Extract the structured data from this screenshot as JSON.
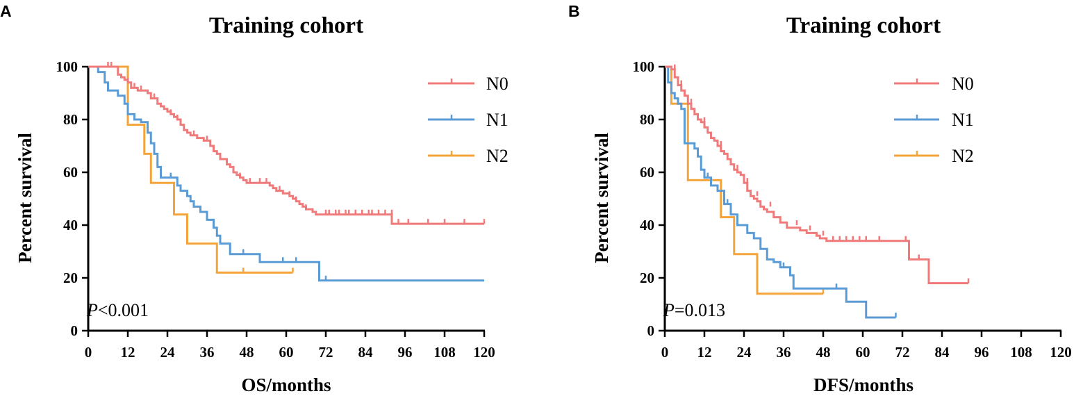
{
  "colors": {
    "N0": "#f07a7a",
    "N1": "#5b9bd5",
    "N2": "#f5a43a"
  },
  "chart_data": [
    {
      "type": "line",
      "panel_label": "A",
      "title": "Training cohort",
      "xlabel": "OS/months",
      "ylabel": "Percent survival",
      "xlim": [
        0,
        120
      ],
      "ylim": [
        0,
        100
      ],
      "x_ticks": [
        0,
        12,
        24,
        36,
        48,
        60,
        72,
        84,
        96,
        108,
        120
      ],
      "y_ticks": [
        0,
        20,
        40,
        60,
        80,
        100
      ],
      "annotation": {
        "italic": "P",
        "text": "<0.001"
      },
      "legend_position": "top-right",
      "series": [
        {
          "name": "N0",
          "steps": [
            [
              0,
              100
            ],
            [
              9,
              97
            ],
            [
              10,
              96
            ],
            [
              11,
              95
            ],
            [
              12,
              94
            ],
            [
              13,
              92
            ],
            [
              15,
              91
            ],
            [
              18,
              90
            ],
            [
              19,
              88
            ],
            [
              21,
              86
            ],
            [
              22,
              85
            ],
            [
              23,
              84
            ],
            [
              24,
              83
            ],
            [
              25,
              82
            ],
            [
              26,
              81
            ],
            [
              27,
              80
            ],
            [
              28,
              78
            ],
            [
              29,
              76
            ],
            [
              30,
              75
            ],
            [
              31,
              74
            ],
            [
              33,
              73
            ],
            [
              35,
              72
            ],
            [
              37,
              70
            ],
            [
              38,
              68
            ],
            [
              39,
              67
            ],
            [
              40,
              65
            ],
            [
              42,
              63
            ],
            [
              43,
              62
            ],
            [
              44,
              60
            ],
            [
              45,
              59
            ],
            [
              46,
              58
            ],
            [
              47,
              57
            ],
            [
              48,
              56
            ],
            [
              55,
              55
            ],
            [
              56,
              54
            ],
            [
              57,
              53
            ],
            [
              59,
              52
            ],
            [
              61,
              51
            ],
            [
              62,
              50
            ],
            [
              63,
              49
            ],
            [
              64,
              48
            ],
            [
              65,
              47
            ],
            [
              66,
              46
            ],
            [
              68,
              45
            ],
            [
              69,
              44
            ],
            [
              92,
              40.5
            ],
            [
              120,
              40.5
            ]
          ],
          "censored": [
            [
              6,
              100
            ],
            [
              7,
              100
            ],
            [
              12,
              94
            ],
            [
              14,
              92
            ],
            [
              16,
              91
            ],
            [
              20,
              88
            ],
            [
              25,
              82
            ],
            [
              27,
              80
            ],
            [
              29,
              76
            ],
            [
              32,
              74
            ],
            [
              36,
              72
            ],
            [
              40,
              65
            ],
            [
              46,
              58
            ],
            [
              49,
              56
            ],
            [
              52,
              56
            ],
            [
              54,
              56
            ],
            [
              58,
              53
            ],
            [
              61,
              51
            ],
            [
              63,
              49
            ],
            [
              66,
              46
            ],
            [
              72,
              44
            ],
            [
              73,
              44
            ],
            [
              75,
              44
            ],
            [
              76,
              44
            ],
            [
              78,
              44
            ],
            [
              79,
              44
            ],
            [
              81,
              44
            ],
            [
              83,
              44
            ],
            [
              85,
              44
            ],
            [
              86,
              44
            ],
            [
              88,
              44
            ],
            [
              90,
              44
            ],
            [
              92,
              44
            ],
            [
              94,
              40.5
            ],
            [
              97,
              40.5
            ],
            [
              103,
              40.5
            ],
            [
              108,
              40.5
            ],
            [
              114,
              40.5
            ],
            [
              120,
              40.5
            ]
          ]
        },
        {
          "name": "N1",
          "steps": [
            [
              0,
              100
            ],
            [
              3,
              98
            ],
            [
              5,
              94
            ],
            [
              6,
              91
            ],
            [
              9,
              89
            ],
            [
              11,
              86
            ],
            [
              12,
              82
            ],
            [
              14,
              80
            ],
            [
              16,
              79
            ],
            [
              18,
              75
            ],
            [
              19,
              71
            ],
            [
              20,
              67
            ],
            [
              21,
              62
            ],
            [
              22,
              58
            ],
            [
              27,
              55
            ],
            [
              28,
              53
            ],
            [
              30,
              51
            ],
            [
              31,
              49
            ],
            [
              32,
              47
            ],
            [
              34,
              45
            ],
            [
              36,
              42
            ],
            [
              38,
              39
            ],
            [
              39,
              36
            ],
            [
              40,
              33
            ],
            [
              43,
              29
            ],
            [
              52,
              26
            ],
            [
              70,
              19
            ],
            [
              120,
              19
            ]
          ],
          "censored": [
            [
              25,
              58
            ],
            [
              47,
              29
            ],
            [
              59,
              26
            ],
            [
              63,
              26
            ],
            [
              72,
              19
            ]
          ]
        },
        {
          "name": "N2",
          "steps": [
            [
              0,
              100
            ],
            [
              12,
              78
            ],
            [
              17,
              67
            ],
            [
              19,
              56
            ],
            [
              26,
              44
            ],
            [
              30,
              33
            ],
            [
              39,
              22
            ],
            [
              62,
              22
            ]
          ],
          "censored": [
            [
              47,
              22
            ],
            [
              62,
              22
            ]
          ]
        }
      ]
    },
    {
      "type": "line",
      "panel_label": "B",
      "title": "Training cohort",
      "xlabel": "DFS/months",
      "ylabel": "Percent survival",
      "xlim": [
        0,
        120
      ],
      "ylim": [
        0,
        100
      ],
      "x_ticks": [
        0,
        12,
        24,
        36,
        48,
        60,
        72,
        84,
        96,
        108,
        120
      ],
      "y_ticks": [
        0,
        20,
        40,
        60,
        80,
        100
      ],
      "annotation": {
        "italic": "P",
        "text": "=0.013"
      },
      "legend_position": "top-right",
      "series": [
        {
          "name": "N0",
          "steps": [
            [
              0,
              100
            ],
            [
              2,
              99
            ],
            [
              3,
              96
            ],
            [
              4,
              93
            ],
            [
              5,
              91
            ],
            [
              6,
              89
            ],
            [
              7,
              86
            ],
            [
              8,
              84
            ],
            [
              9,
              82
            ],
            [
              10,
              80
            ],
            [
              11,
              79
            ],
            [
              12,
              77
            ],
            [
              13,
              75
            ],
            [
              14,
              73
            ],
            [
              15,
              72
            ],
            [
              16,
              70
            ],
            [
              17,
              68
            ],
            [
              18,
              67
            ],
            [
              19,
              65
            ],
            [
              20,
              63
            ],
            [
              21,
              61
            ],
            [
              22,
              60
            ],
            [
              23,
              59
            ],
            [
              24,
              56
            ],
            [
              25,
              53
            ],
            [
              26,
              51
            ],
            [
              27,
              50
            ],
            [
              28,
              49
            ],
            [
              29,
              47
            ],
            [
              30,
              46
            ],
            [
              31,
              45
            ],
            [
              33,
              43
            ],
            [
              35,
              41
            ],
            [
              37,
              39
            ],
            [
              41,
              38
            ],
            [
              43,
              37
            ],
            [
              46,
              36
            ],
            [
              47,
              35
            ],
            [
              49,
              34
            ],
            [
              74,
              27
            ],
            [
              80,
              18
            ],
            [
              92,
              18
            ]
          ],
          "censored": [
            [
              3,
              99
            ],
            [
              5,
              93
            ],
            [
              8,
              86
            ],
            [
              12,
              79
            ],
            [
              17,
              70
            ],
            [
              22,
              61
            ],
            [
              25,
              56
            ],
            [
              28,
              51
            ],
            [
              32,
              47
            ],
            [
              40,
              40
            ],
            [
              44,
              38
            ],
            [
              48,
              36
            ],
            [
              51,
              34
            ],
            [
              53,
              34
            ],
            [
              55,
              34
            ],
            [
              57,
              34
            ],
            [
              59,
              34
            ],
            [
              61,
              34
            ],
            [
              65,
              34
            ],
            [
              73,
              34
            ],
            [
              77,
              27
            ],
            [
              92,
              18
            ]
          ]
        },
        {
          "name": "N1",
          "steps": [
            [
              0,
              100
            ],
            [
              1,
              94
            ],
            [
              2,
              90
            ],
            [
              3,
              88
            ],
            [
              4,
              86
            ],
            [
              5,
              84
            ],
            [
              6,
              71
            ],
            [
              9,
              69
            ],
            [
              10,
              66
            ],
            [
              11,
              61
            ],
            [
              12,
              58
            ],
            [
              14,
              55
            ],
            [
              16,
              53
            ],
            [
              18,
              48
            ],
            [
              20,
              44
            ],
            [
              22,
              40
            ],
            [
              25,
              37
            ],
            [
              27,
              35
            ],
            [
              29,
              31
            ],
            [
              31,
              27
            ],
            [
              33,
              26
            ],
            [
              35,
              24
            ],
            [
              38,
              21
            ],
            [
              39,
              16
            ],
            [
              55,
              11
            ],
            [
              61,
              5
            ],
            [
              70,
              5
            ]
          ],
          "censored": [
            [
              5,
              84
            ],
            [
              13,
              58
            ],
            [
              19,
              48
            ],
            [
              36,
              24
            ],
            [
              52,
              16
            ],
            [
              70,
              5
            ]
          ]
        },
        {
          "name": "N2",
          "steps": [
            [
              0,
              100
            ],
            [
              2,
              86
            ],
            [
              7,
              57
            ],
            [
              17,
              43
            ],
            [
              21,
              29
            ],
            [
              28,
              14
            ],
            [
              48,
              14
            ]
          ],
          "censored": [
            [
              4,
              86
            ],
            [
              48,
              14
            ]
          ]
        }
      ]
    }
  ]
}
